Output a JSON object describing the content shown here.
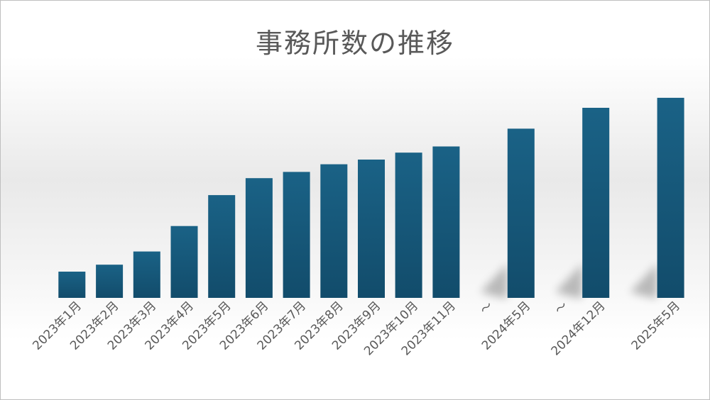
{
  "chart_data": {
    "type": "bar",
    "title": "事務所数の推移",
    "categories": [
      "2023年1月",
      "2023年2月",
      "2023年3月",
      "2023年4月",
      "2023年5月",
      "2023年6月",
      "2023年7月",
      "2023年8月",
      "2023年9月",
      "2023年10月",
      "2023年11月",
      "〜",
      "2024年5月",
      "〜",
      "2024年12月",
      "",
      "2025年5月"
    ],
    "values": [
      34,
      43,
      60,
      93,
      133,
      155,
      163,
      173,
      179,
      188,
      196,
      null,
      219,
      null,
      246,
      null,
      259
    ],
    "xlabel": "",
    "ylabel": "",
    "ylim": [
      0,
      280
    ],
    "grid": false,
    "legend": "none",
    "colors": {
      "bar_top": "#1a6286",
      "bar_bottom": "#124c6b",
      "tick_label": "#595959",
      "title": "#595959"
    }
  }
}
